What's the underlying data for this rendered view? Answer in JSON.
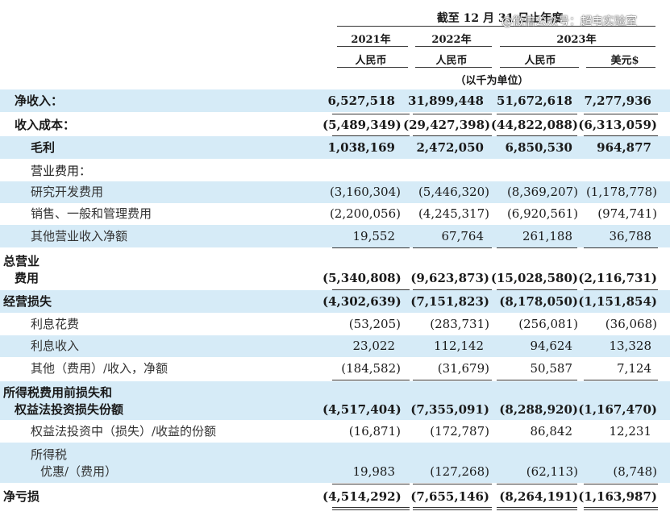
{
  "header": {
    "period": "截至 12 月 31 日止年度",
    "year_2021": "2021年",
    "year_2022": "2022年",
    "year_2023": "2023年",
    "rmb_2021": "人民币",
    "rmb_2022": "人民币",
    "rmb_2023": "人民币",
    "usd_2023": "美元$",
    "unit": "（以千为单位）"
  },
  "watermark": "@微信公众号：超电实验室",
  "rows": [
    {
      "label": "净收入：",
      "v2021": "6,527,518",
      "v2022": "31,899,448",
      "v2023": "51,672,618",
      "usd": "7,277,936"
    },
    {
      "label": "收入成本：",
      "v2021": "(5,489,349)",
      "v2022": "(29,427,398)",
      "v2023": "(44,822,088)",
      "usd": "(6,313,059)"
    },
    {
      "label": "毛利",
      "v2021": "1,038,169",
      "v2022": "2,472,050",
      "v2023": "6,850,530",
      "usd": "964,877"
    },
    {
      "label": "营业费用："
    },
    {
      "label": "研究开发费用",
      "v2021": "(3,160,304)",
      "v2022": "(5,446,320)",
      "v2023": "(8,369,207)",
      "usd": "(1,178,778)"
    },
    {
      "label": "销售、一般和管理费用",
      "v2021": "(2,200,056)",
      "v2022": "(4,245,317)",
      "v2023": "(6,920,561)",
      "usd": "(974,741)"
    },
    {
      "label": "其他营业收入净额",
      "v2021": "19,552",
      "v2022": "67,764",
      "v2023": "261,188",
      "usd": "36,788"
    },
    {
      "label1": "总营业",
      "label2": "费用",
      "v2021": "(5,340,808)",
      "v2022": "(9,623,873)",
      "v2023": "(15,028,580)",
      "usd": "(2,116,731)"
    },
    {
      "label": "经营损失",
      "v2021": "(4,302,639)",
      "v2022": "(7,151,823)",
      "v2023": "(8,178,050)",
      "usd": "(1,151,854)"
    },
    {
      "label": "利息花费",
      "v2021": "(53,205)",
      "v2022": "(283,731)",
      "v2023": "(256,081)",
      "usd": "(36,068)"
    },
    {
      "label": "利息收入",
      "v2021": "23,022",
      "v2022": "112,142",
      "v2023": "94,624",
      "usd": "13,328"
    },
    {
      "label": "其他（费用）/收入，净额",
      "v2021": "(184,582)",
      "v2022": "(31,679)",
      "v2023": "50,587",
      "usd": "7,124"
    },
    {
      "label1": "所得税费用前损失和",
      "label2": "权益法投资损失份额",
      "v2021": "(4,517,404)",
      "v2022": "(7,355,091)",
      "v2023": "(8,288,920)",
      "usd": "(1,167,470)"
    },
    {
      "label": "权益法投资中（损失）/收益的份额",
      "v2021": "(16,871)",
      "v2022": "(172,787)",
      "v2023": "86,842",
      "usd": "12,231"
    },
    {
      "label1": "所得税",
      "label2": "优惠/（费用）",
      "v2021": "19,983",
      "v2022": "(127,268)",
      "v2023": "(62,113)",
      "usd": "(8,748)"
    },
    {
      "label": "净亏损",
      "v2021": "(4,514,292)",
      "v2022": "(7,655,146)",
      "v2023": "(8,264,191)",
      "usd": "(1,163,987)"
    }
  ]
}
